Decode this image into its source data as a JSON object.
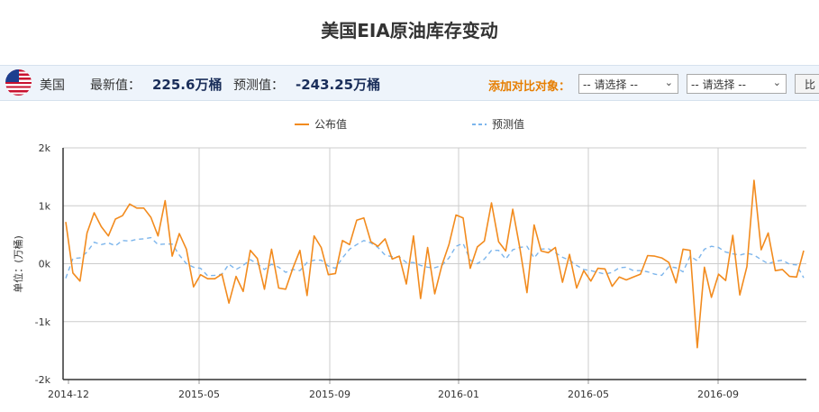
{
  "title": "美国EIA原油库存变动",
  "info": {
    "country": "美国",
    "latest_label": "最新值：",
    "latest_value": "225.6万桶",
    "forecast_label": "预测值：",
    "forecast_value": "-243.25万桶",
    "compare_label": "添加对比对象：",
    "select1": "-- 请选择 --",
    "select2": "-- 请选择 --",
    "compare_button": "比"
  },
  "colors": {
    "published": "#f28b1e",
    "forecast": "#7cb5ec",
    "grid": "#cccccc",
    "axis": "#333333"
  },
  "chart_data": {
    "type": "line",
    "ylabel": "单位：(万桶)",
    "ylim": [
      -2000,
      2000
    ],
    "yticks": [
      -2000,
      -1000,
      0,
      1000,
      2000
    ],
    "ytick_labels": [
      "-2k",
      "-1k",
      "0k",
      "1k",
      "2k"
    ],
    "x_tick_labels": [
      "2014-12",
      "2015-05",
      "2015-09",
      "2016-01",
      "2016-05",
      "2016-09"
    ],
    "legend_position": "top-center",
    "grid": true,
    "series": [
      {
        "name": "公布值",
        "style": "solid",
        "values": [
          720,
          -160,
          -300,
          530,
          880,
          640,
          480,
          770,
          830,
          1030,
          960,
          960,
          800,
          480,
          1090,
          130,
          520,
          250,
          -400,
          -190,
          -260,
          -260,
          -180,
          -680,
          -220,
          -480,
          230,
          90,
          -440,
          250,
          -420,
          -440,
          -80,
          230,
          -550,
          480,
          280,
          -190,
          -170,
          400,
          330,
          750,
          790,
          380,
          300,
          430,
          80,
          130,
          -350,
          480,
          -600,
          280,
          -520,
          -30,
          330,
          840,
          790,
          -80,
          290,
          390,
          1050,
          380,
          220,
          940,
          270,
          -500,
          670,
          220,
          190,
          280,
          -320,
          160,
          -420,
          -120,
          -300,
          -80,
          -90,
          -390,
          -230,
          -280,
          -230,
          -180,
          140,
          130,
          100,
          20,
          -330,
          250,
          230,
          -1450,
          -60,
          -580,
          -180,
          -290,
          490,
          -540,
          -50,
          1440,
          240,
          530,
          -120,
          -100,
          -220,
          -230,
          226
        ]
      },
      {
        "name": "预测值",
        "style": "dashed",
        "values": [
          -250,
          90,
          100,
          200,
          370,
          330,
          360,
          310,
          400,
          390,
          420,
          430,
          450,
          330,
          340,
          340,
          150,
          0,
          -60,
          -80,
          -210,
          -200,
          -180,
          -10,
          -100,
          -30,
          70,
          0,
          -100,
          -10,
          -60,
          -150,
          -100,
          -120,
          20,
          60,
          60,
          -40,
          -80,
          100,
          250,
          330,
          400,
          360,
          280,
          150,
          120,
          120,
          20,
          20,
          -30,
          -60,
          -70,
          -30,
          100,
          300,
          350,
          60,
          0,
          80,
          230,
          230,
          80,
          240,
          280,
          300,
          100,
          250,
          260,
          190,
          110,
          60,
          -30,
          -100,
          -120,
          -150,
          -180,
          -150,
          -70,
          -60,
          -120,
          -120,
          -140,
          -180,
          -200,
          -50,
          -70,
          -140,
          130,
          50,
          250,
          300,
          280,
          200,
          170,
          150,
          180,
          150,
          70,
          0,
          40,
          60,
          -10,
          -20,
          -243
        ]
      }
    ]
  }
}
